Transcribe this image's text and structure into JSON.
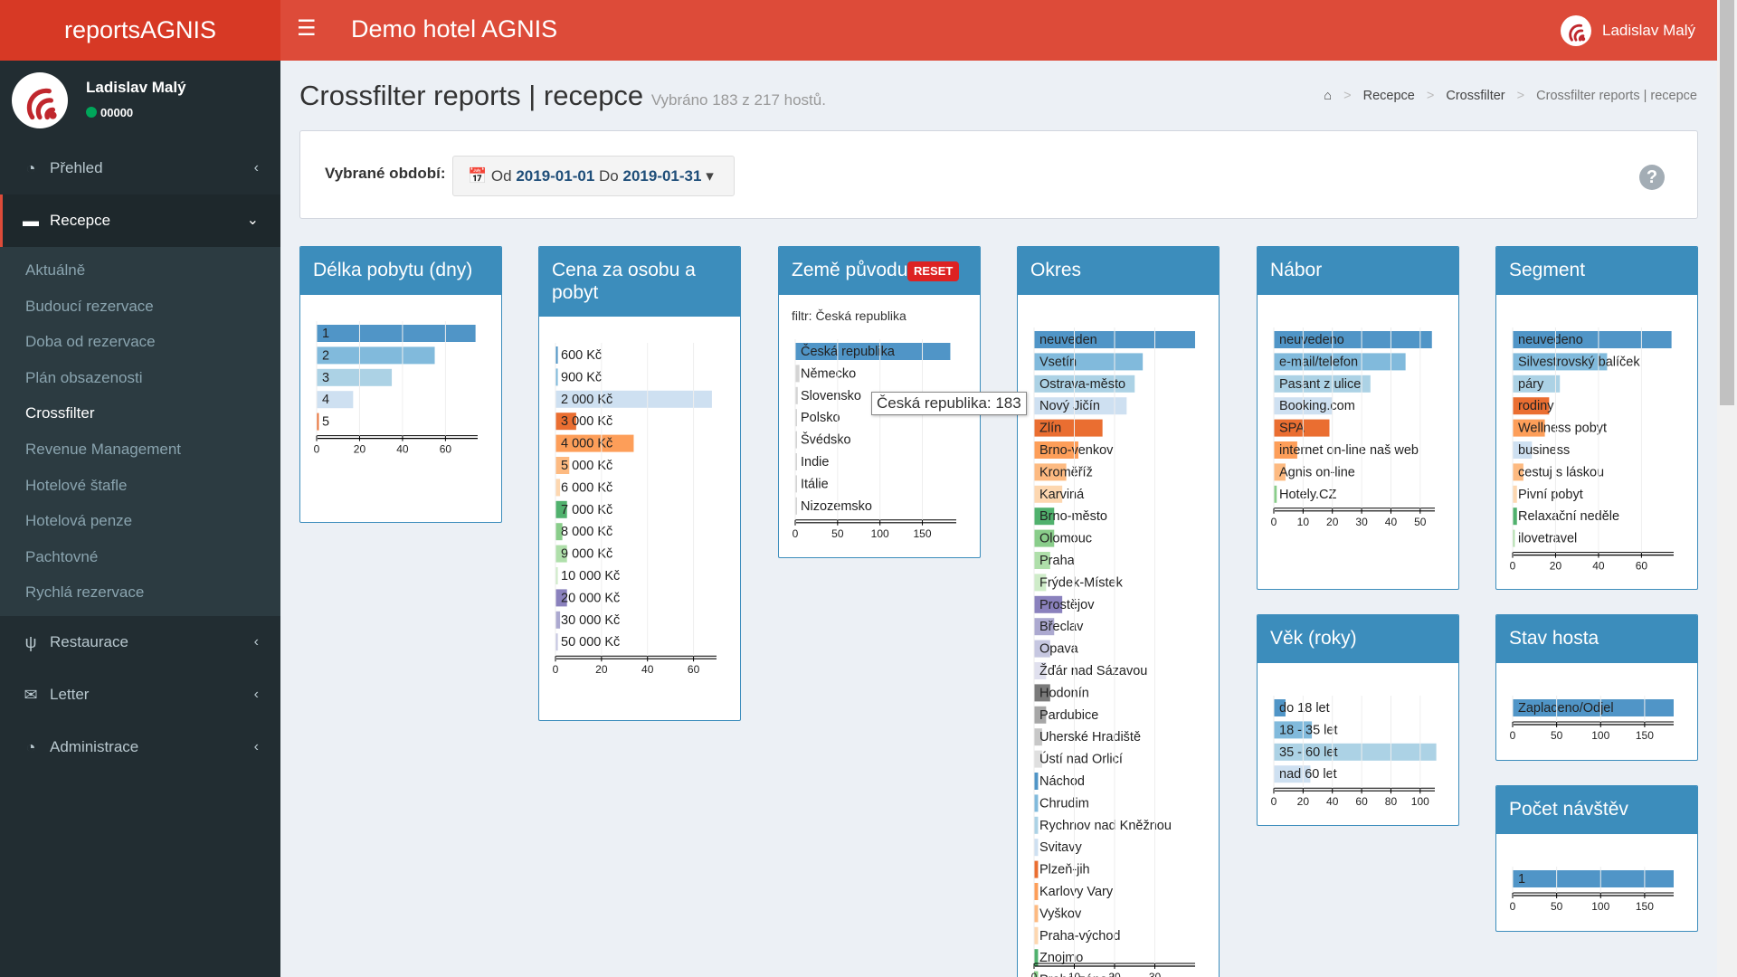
{
  "header": {
    "brand": "reportsAGNIS",
    "hotel": "Demo hotel AGNIS",
    "user": "Ladislav Malý",
    "menu_icon": "hamburger-icon"
  },
  "sidebar": {
    "user": {
      "name": "Ladislav Malý",
      "status": "00000"
    },
    "items": [
      {
        "label": "Přehled",
        "icon": "dashboard-icon",
        "glyph": "◔"
      },
      {
        "label": "Recepce",
        "icon": "bed-icon",
        "glyph": "▬",
        "active": true
      },
      {
        "label": "Restaurace",
        "icon": "cutlery-icon",
        "glyph": "ψ"
      },
      {
        "label": "Letter",
        "icon": "envelope-icon",
        "glyph": "✉"
      },
      {
        "label": "Administrace",
        "icon": "dashboard-icon",
        "glyph": "◔"
      }
    ],
    "subitems": [
      "Aktuálně",
      "Budoucí rezervace",
      "Doba od rezervace",
      "Plán obsazenosti",
      "Crossfilter",
      "Revenue Management",
      "Hotelové štafle",
      "Hotelová penze",
      "Pachtovné",
      "Rychlá rezervace"
    ],
    "current_sub": "Crossfilter"
  },
  "page": {
    "title": "Crossfilter reports | recepce",
    "subtitle": "Vybráno 183 z 217 hostů."
  },
  "breadcrumb": {
    "home_icon": "home-icon",
    "items": [
      "Recepce",
      "Crossfilter",
      "Crossfilter reports | recepce"
    ],
    "separator": ">"
  },
  "period": {
    "label": "Vybrané období:",
    "calendar_icon": "calendar-icon",
    "from_label": "Od",
    "from": "2019-01-01",
    "to_label": "Do",
    "to": "2019-01-31",
    "caret": "▾",
    "help_icon": "question-circle-icon",
    "help_glyph": "?"
  },
  "charts": {
    "delka": {
      "title": "Délka pobytu (dny)"
    },
    "cena": {
      "title": "Cena za osobu a pobyt"
    },
    "zeme": {
      "title": "Země původu",
      "reset": "RESET",
      "filter": "filtr: Česká republika"
    },
    "okres": {
      "title": "Okres"
    },
    "nabor": {
      "title": "Nábor"
    },
    "segment": {
      "title": "Segment"
    },
    "vek": {
      "title": "Věk (roky)"
    },
    "stav": {
      "title": "Stav hosta"
    },
    "navstevy": {
      "title": "Počet návštěv"
    }
  },
  "tooltip": "Česká republika: 183",
  "chart_data": [
    {
      "id": "delka",
      "type": "bar",
      "orientation": "horizontal",
      "title": "Délka pobytu (dny)",
      "xlim": [
        0,
        75
      ],
      "ticks": [
        0,
        20,
        40,
        60
      ],
      "categories": [
        "1",
        "2",
        "3",
        "4",
        "5"
      ],
      "values": [
        74,
        55,
        35,
        17,
        1
      ],
      "colors": [
        "#3182bd",
        "#6baed6",
        "#9ecae1",
        "#c6dbef",
        "#e6550d"
      ]
    },
    {
      "id": "cena",
      "type": "bar",
      "orientation": "horizontal",
      "title": "Cena za osobu a pobyt",
      "xlim": [
        0,
        70
      ],
      "ticks": [
        0,
        20,
        40,
        60
      ],
      "categories": [
        "600 Kč",
        "900 Kč",
        "2 000 Kč",
        "3 000 Kč",
        "4 000 Kč",
        "5 000 Kč",
        "6 000 Kč",
        "7 000 Kč",
        "8 000 Kč",
        "9 000 Kč",
        "10 000 Kč",
        "20 000 Kč",
        "30 000 Kč",
        "50 000 Kč"
      ],
      "values": [
        1,
        1,
        68,
        9,
        34,
        6,
        2,
        5,
        3,
        5,
        1,
        5,
        2,
        1
      ],
      "colors": [
        "#3182bd",
        "#6baed6",
        "#c6dbef",
        "#e6550d",
        "#fd8d3c",
        "#fdae6b",
        "#fdd0a2",
        "#31a354",
        "#74c476",
        "#a1d99b",
        "#c7e9c0",
        "#756bb1",
        "#9e9ac8",
        "#bcbddc"
      ]
    },
    {
      "id": "zeme",
      "type": "bar",
      "orientation": "horizontal",
      "title": "Země původu",
      "xlim": [
        0,
        190
      ],
      "ticks": [
        0,
        50,
        100,
        150
      ],
      "categories": [
        "Česká republika",
        "Německo",
        "Slovensko",
        "Polsko",
        "Švédsko",
        "Indie",
        "Itálie",
        "Nizozemsko"
      ],
      "values": [
        183,
        5,
        3,
        2,
        1,
        1,
        1,
        1
      ],
      "colors": [
        "#3182bd",
        "#cccccc",
        "#cccccc",
        "#cccccc",
        "#cccccc",
        "#cccccc",
        "#cccccc",
        "#cccccc"
      ]
    },
    {
      "id": "okres",
      "type": "bar",
      "orientation": "horizontal",
      "title": "Okres",
      "xlim": [
        0,
        40
      ],
      "ticks": [
        0,
        10,
        20,
        30
      ],
      "categories": [
        "neuveden",
        "Vsetín",
        "Ostrava-město",
        "Nový Jičín",
        "Zlín",
        "Brno-venkov",
        "Kroměříž",
        "Karviná",
        "Brno-město",
        "Olomouc",
        "Praha",
        "Frýdek-Místek",
        "Prostějov",
        "Břeclav",
        "Opava",
        "Žďár nad Sázavou",
        "Hodonín",
        "Pardubice",
        "Uherské Hradiště",
        "Ústí nad Orlicí",
        "Náchod",
        "Chrudim",
        "Rychnov nad Kněžnou",
        "Svitavy",
        "Plzeň-jih",
        "Karlovy Vary",
        "Vyškov",
        "Praha-východ",
        "Znojmo",
        "Praha-západ"
      ],
      "values": [
        40,
        27,
        25,
        23,
        17,
        11,
        8,
        7,
        5,
        5,
        4,
        3,
        7,
        5,
        4,
        3,
        4,
        3,
        2,
        2,
        1,
        1,
        1,
        1,
        1,
        1,
        1,
        1,
        1,
        1
      ],
      "colors": [
        "#3182bd",
        "#6baed6",
        "#9ecae1",
        "#c6dbef",
        "#e6550d",
        "#fd8d3c",
        "#fdae6b",
        "#fdd0a2",
        "#31a354",
        "#74c476",
        "#a1d99b",
        "#c7e9c0",
        "#756bb1",
        "#9e9ac8",
        "#bcbddc",
        "#dadaeb",
        "#636363",
        "#969696",
        "#bdbdbd",
        "#d9d9d9",
        "#3182bd",
        "#6baed6",
        "#9ecae1",
        "#c6dbef",
        "#e6550d",
        "#fd8d3c",
        "#fdae6b",
        "#fdd0a2",
        "#31a354",
        "#74c476"
      ]
    },
    {
      "id": "nabor",
      "type": "bar",
      "orientation": "horizontal",
      "title": "Nábor",
      "xlim": [
        0,
        55
      ],
      "ticks": [
        0,
        10,
        20,
        30,
        40,
        50
      ],
      "categories": [
        "neuvedeno",
        "e-mail/telefon",
        "Pasant z ulice",
        "Booking.com",
        "SPA",
        "internet on-line naš web",
        "Agnis on-line",
        "Hotely.CZ"
      ],
      "values": [
        54,
        45,
        33,
        20,
        19,
        8,
        4,
        1
      ],
      "colors": [
        "#3182bd",
        "#6baed6",
        "#9ecae1",
        "#c6dbef",
        "#e6550d",
        "#fd8d3c",
        "#fdae6b",
        "#74c476"
      ]
    },
    {
      "id": "segment",
      "type": "bar",
      "orientation": "horizontal",
      "title": "Segment",
      "xlim": [
        0,
        75
      ],
      "ticks": [
        0,
        20,
        40,
        60
      ],
      "categories": [
        "neuvedeno",
        "Silvestrovský balíček",
        "páry",
        "rodiny",
        "Wellness pobyt",
        "business",
        "cestuj s láskou",
        "Pivní pobyt",
        "Relaxační neděle",
        "ilovetravel"
      ],
      "values": [
        74,
        44,
        22,
        17,
        15,
        9,
        5,
        2,
        2,
        1
      ],
      "colors": [
        "#3182bd",
        "#6baed6",
        "#9ecae1",
        "#e6550d",
        "#fd8d3c",
        "#c6dbef",
        "#fdae6b",
        "#fdd0a2",
        "#31a354",
        "#a1d99b"
      ]
    },
    {
      "id": "vek",
      "type": "bar",
      "orientation": "horizontal",
      "title": "Věk (roky)",
      "xlim": [
        0,
        110
      ],
      "ticks": [
        0,
        20,
        40,
        60,
        80,
        100
      ],
      "categories": [
        "do 18 let",
        "18 - 35 let",
        "35 - 60 let",
        "nad 60 let"
      ],
      "values": [
        8,
        26,
        111,
        25
      ],
      "colors": [
        "#3182bd",
        "#6baed6",
        "#9ecae1",
        "#c6dbef"
      ]
    },
    {
      "id": "stav",
      "type": "bar",
      "orientation": "horizontal",
      "title": "Stav hosta",
      "xlim": [
        0,
        183
      ],
      "ticks": [
        0,
        50,
        100,
        150
      ],
      "categories": [
        "Zaplaceno/Odjel"
      ],
      "values": [
        183
      ],
      "colors": [
        "#3182bd"
      ]
    },
    {
      "id": "navstevy",
      "type": "bar",
      "orientation": "horizontal",
      "title": "Počet návštěv",
      "xlim": [
        0,
        183
      ],
      "ticks": [
        0,
        50,
        100,
        150
      ],
      "categories": [
        "1"
      ],
      "values": [
        183
      ],
      "colors": [
        "#3182bd"
      ]
    }
  ]
}
